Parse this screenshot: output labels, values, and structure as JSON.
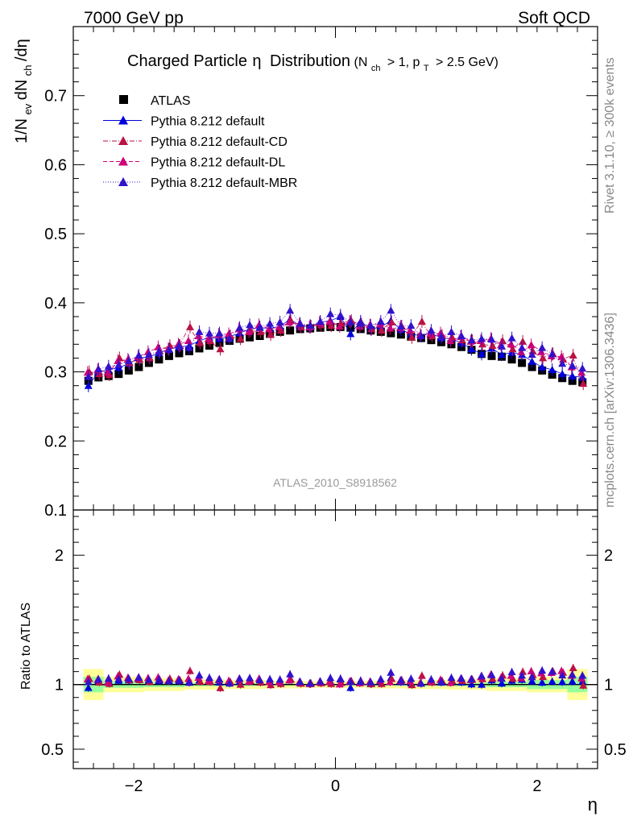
{
  "header": {
    "left": "7000 GeV pp",
    "right": "Soft QCD"
  },
  "side_labels": {
    "rivet": "Rivet 3.1.10, ≥ 300k events",
    "source": "mcplots.cern.ch [arXiv:1306.3436]"
  },
  "chart_data": {
    "type": "scatter",
    "title_main": "Charged Particle",
    "title_eta": "η",
    "title_dist": "Distribution",
    "title_cuts": "(N",
    "title_cuts_sub1": "ch",
    "title_cuts_mid": "> 1, p",
    "title_cuts_sub2": "T",
    "title_cuts_end": "> 2.5 GeV)",
    "analysis_id": "ATLAS_2010_S8918562",
    "xlabel": "η",
    "ylabel_pieces": [
      "1/N",
      "ev",
      " dN",
      "ch",
      "/dη"
    ],
    "ratio_ylabel": "Ratio to ATLAS",
    "xlim": [
      -2.6,
      2.6
    ],
    "ylim": [
      0.1,
      0.8
    ],
    "ratio_ylim": [
      0.35,
      2.35
    ],
    "x_ticks": [
      -2,
      0,
      2
    ],
    "x_tick_labels": [
      "−2",
      "0",
      "2"
    ],
    "y_ticks": [
      0.1,
      0.2,
      0.3,
      0.4,
      0.5,
      0.6,
      0.7
    ],
    "y_tick_labels": [
      "0.1",
      "0.2",
      "0.3",
      "0.4",
      "0.5",
      "0.6",
      "0.7"
    ],
    "ratio_ticks": [
      0.5,
      1,
      2
    ],
    "ratio_tick_labels": [
      "0.5",
      "1",
      "2"
    ],
    "x": [
      -2.45,
      -2.35,
      -2.25,
      -2.15,
      -2.05,
      -1.95,
      -1.85,
      -1.75,
      -1.65,
      -1.55,
      -1.45,
      -1.35,
      -1.25,
      -1.15,
      -1.05,
      -0.95,
      -0.85,
      -0.75,
      -0.65,
      -0.55,
      -0.45,
      -0.35,
      -0.25,
      -0.15,
      -0.05,
      0.05,
      0.15,
      0.25,
      0.35,
      0.45,
      0.55,
      0.65,
      0.75,
      0.85,
      0.95,
      1.05,
      1.15,
      1.25,
      1.35,
      1.45,
      1.55,
      1.65,
      1.75,
      1.85,
      1.95,
      2.05,
      2.15,
      2.25,
      2.35,
      2.45
    ],
    "series": [
      {
        "name": "ATLAS",
        "color": "#000000",
        "marker": "square",
        "values": [
          0.287,
          0.292,
          0.294,
          0.297,
          0.302,
          0.307,
          0.313,
          0.318,
          0.323,
          0.327,
          0.33,
          0.334,
          0.338,
          0.342,
          0.345,
          0.348,
          0.35,
          0.352,
          0.355,
          0.358,
          0.36,
          0.362,
          0.363,
          0.364,
          0.365,
          0.365,
          0.364,
          0.362,
          0.36,
          0.358,
          0.356,
          0.354,
          0.351,
          0.349,
          0.346,
          0.343,
          0.34,
          0.336,
          0.332,
          0.326,
          0.323,
          0.322,
          0.318,
          0.313,
          0.307,
          0.302,
          0.296,
          0.291,
          0.287,
          0.285
        ]
      },
      {
        "name": "Pythia 8.212 default",
        "color": "#0000dd",
        "marker": "triangle",
        "line": "solid",
        "values": [
          0.28,
          0.3,
          0.303,
          0.306,
          0.312,
          0.32,
          0.322,
          0.327,
          0.333,
          0.336,
          0.338,
          0.345,
          0.35,
          0.348,
          0.351,
          0.356,
          0.362,
          0.364,
          0.363,
          0.366,
          0.376,
          0.367,
          0.365,
          0.372,
          0.374,
          0.38,
          0.355,
          0.373,
          0.362,
          0.365,
          0.374,
          0.361,
          0.355,
          0.352,
          0.356,
          0.349,
          0.348,
          0.342,
          0.333,
          0.326,
          0.334,
          0.325,
          0.328,
          0.325,
          0.315,
          0.307,
          0.303,
          0.297,
          0.294,
          0.292
        ]
      },
      {
        "name": "Pythia 8.212 default-CD",
        "color": "#bb1144",
        "marker": "triangle",
        "line": "dashdot",
        "values": [
          0.3,
          0.297,
          0.296,
          0.32,
          0.313,
          0.318,
          0.32,
          0.33,
          0.338,
          0.338,
          0.365,
          0.342,
          0.345,
          0.333,
          0.352,
          0.348,
          0.36,
          0.358,
          0.354,
          0.36,
          0.374,
          0.365,
          0.366,
          0.368,
          0.367,
          0.37,
          0.374,
          0.369,
          0.362,
          0.36,
          0.372,
          0.366,
          0.35,
          0.373,
          0.352,
          0.353,
          0.35,
          0.346,
          0.345,
          0.34,
          0.338,
          0.345,
          0.333,
          0.344,
          0.33,
          0.32,
          0.326,
          0.318,
          0.324,
          0.283
        ]
      },
      {
        "name": "Pythia 8.212 default-DL",
        "color": "#cc0077",
        "marker": "triangle",
        "line": "dashed",
        "values": [
          0.299,
          0.303,
          0.299,
          0.316,
          0.318,
          0.322,
          0.329,
          0.336,
          0.333,
          0.34,
          0.345,
          0.352,
          0.348,
          0.354,
          0.355,
          0.362,
          0.358,
          0.368,
          0.362,
          0.365,
          0.372,
          0.369,
          0.365,
          0.371,
          0.373,
          0.366,
          0.373,
          0.366,
          0.368,
          0.369,
          0.363,
          0.364,
          0.36,
          0.354,
          0.355,
          0.356,
          0.345,
          0.351,
          0.344,
          0.345,
          0.348,
          0.339,
          0.34,
          0.329,
          0.339,
          0.329,
          0.323,
          0.322,
          0.307,
          0.299
        ]
      },
      {
        "name": "Pythia 8.212 default-MBR",
        "color": "#3311cc",
        "marker": "triangle",
        "line": "dotted",
        "values": [
          0.293,
          0.304,
          0.308,
          0.31,
          0.316,
          0.324,
          0.325,
          0.33,
          0.332,
          0.338,
          0.335,
          0.358,
          0.356,
          0.356,
          0.348,
          0.364,
          0.368,
          0.365,
          0.37,
          0.372,
          0.389,
          0.37,
          0.367,
          0.373,
          0.384,
          0.382,
          0.372,
          0.37,
          0.367,
          0.373,
          0.389,
          0.366,
          0.367,
          0.352,
          0.36,
          0.351,
          0.358,
          0.352,
          0.346,
          0.348,
          0.347,
          0.337,
          0.349,
          0.335,
          0.325,
          0.335,
          0.326,
          0.312,
          0.309,
          0.305
        ]
      }
    ],
    "ratio_bands": {
      "x_edges": [
        -2.5,
        -2.3,
        -1.9,
        -1.5,
        -1.1,
        -0.7,
        -0.3,
        0.3,
        0.7,
        1.1,
        1.5,
        1.9,
        2.3,
        2.5
      ],
      "stat_sys_half": [
        0.12,
        0.06,
        0.05,
        0.04,
        0.035,
        0.03,
        0.025,
        0.03,
        0.035,
        0.04,
        0.05,
        0.06,
        0.12
      ],
      "stat_half": [
        0.06,
        0.025,
        0.02,
        0.012,
        0.01,
        0.008,
        0.006,
        0.008,
        0.01,
        0.012,
        0.02,
        0.035,
        0.06
      ],
      "yellow": "#ffff99",
      "green": "#99ff99"
    }
  }
}
